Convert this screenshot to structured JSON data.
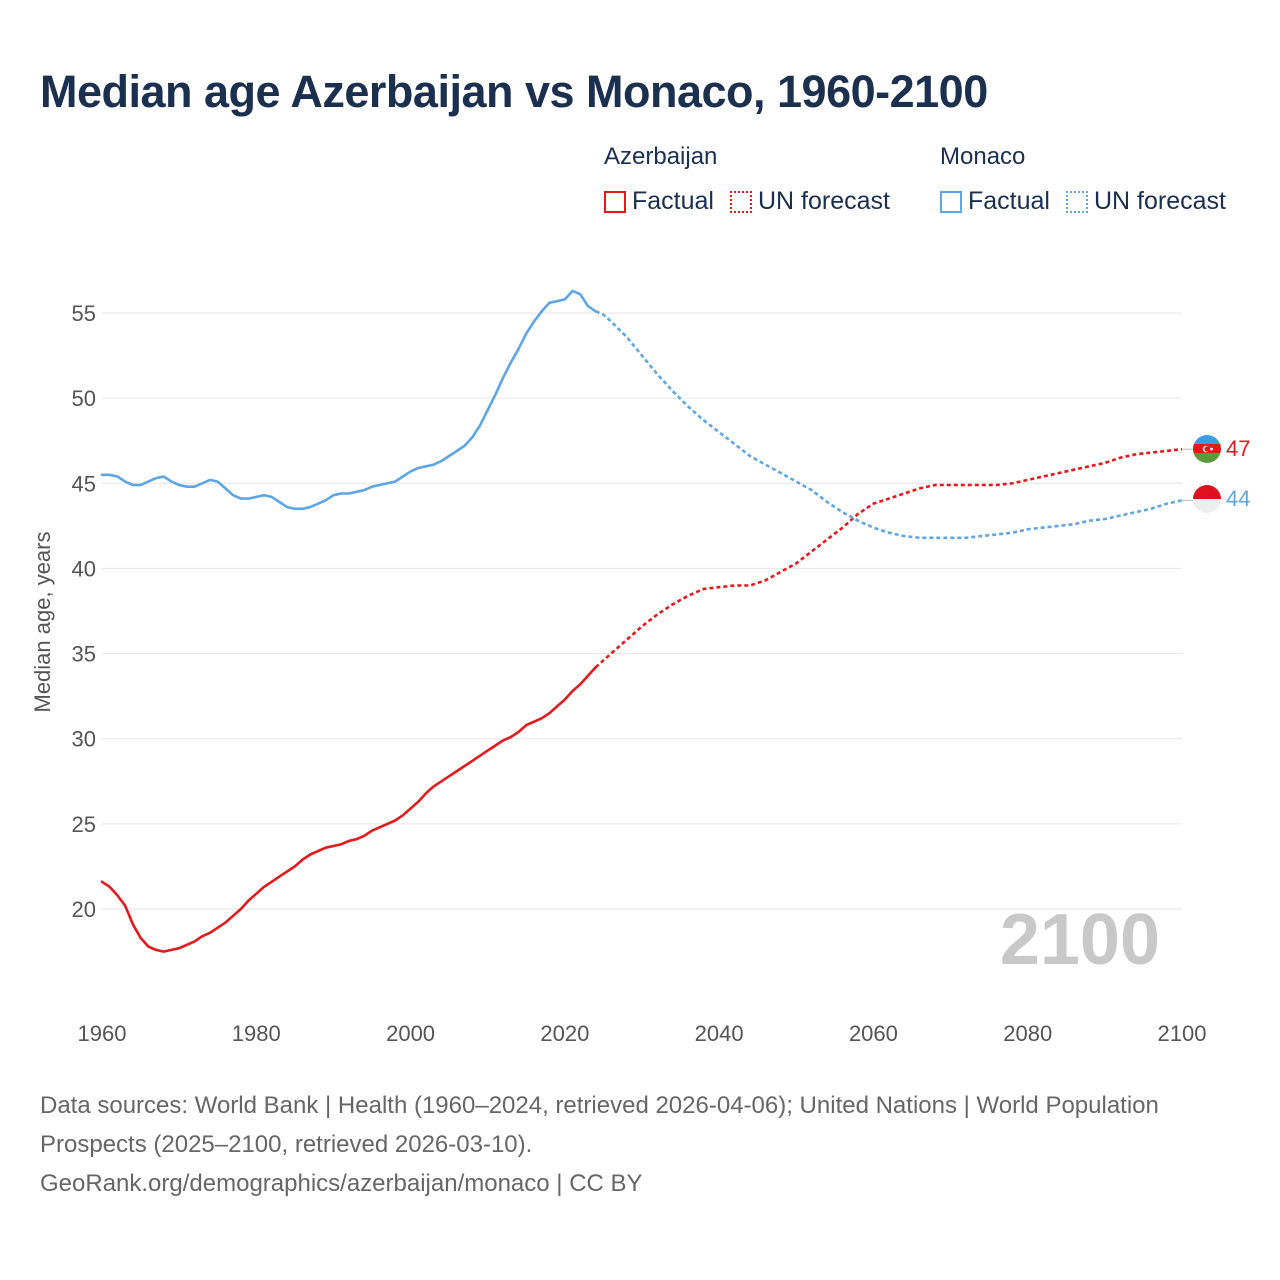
{
  "chart_data": {
    "type": "line",
    "title": "Median age Azerbaijan vs Monaco, 1960-2100",
    "ylabel": "Median age, years",
    "xlabel": "",
    "xlim": [
      1960,
      2100
    ],
    "ylim": [
      15,
      58
    ],
    "x_ticks": [
      1960,
      1980,
      2000,
      2020,
      2040,
      2060,
      2080,
      2100
    ],
    "y_ticks": [
      20,
      25,
      30,
      35,
      40,
      45,
      50,
      55
    ],
    "grid": true,
    "year_watermark": "2100",
    "forecast_start": 2024,
    "legend": {
      "groups": [
        {
          "name": "Azerbaijan",
          "factual_label": "Factual",
          "forecast_label": "UN forecast",
          "color": "#e31a1c"
        },
        {
          "name": "Monaco",
          "factual_label": "Factual",
          "forecast_label": "UN forecast",
          "color": "#5da6e3"
        }
      ]
    },
    "series": [
      {
        "name": "Azerbaijan",
        "color": "#e31a1c",
        "end_label": "47",
        "points": [
          [
            1960,
            21.6
          ],
          [
            1961,
            21.3
          ],
          [
            1962,
            20.8
          ],
          [
            1963,
            20.2
          ],
          [
            1964,
            19.1
          ],
          [
            1965,
            18.3
          ],
          [
            1966,
            17.8
          ],
          [
            1967,
            17.6
          ],
          [
            1968,
            17.5
          ],
          [
            1969,
            17.6
          ],
          [
            1970,
            17.7
          ],
          [
            1971,
            17.9
          ],
          [
            1972,
            18.1
          ],
          [
            1973,
            18.4
          ],
          [
            1974,
            18.6
          ],
          [
            1975,
            18.9
          ],
          [
            1976,
            19.2
          ],
          [
            1977,
            19.6
          ],
          [
            1978,
            20.0
          ],
          [
            1979,
            20.5
          ],
          [
            1980,
            20.9
          ],
          [
            1981,
            21.3
          ],
          [
            1982,
            21.6
          ],
          [
            1983,
            21.9
          ],
          [
            1984,
            22.2
          ],
          [
            1985,
            22.5
          ],
          [
            1986,
            22.9
          ],
          [
            1987,
            23.2
          ],
          [
            1988,
            23.4
          ],
          [
            1989,
            23.6
          ],
          [
            1990,
            23.7
          ],
          [
            1991,
            23.8
          ],
          [
            1992,
            24.0
          ],
          [
            1993,
            24.1
          ],
          [
            1994,
            24.3
          ],
          [
            1995,
            24.6
          ],
          [
            1996,
            24.8
          ],
          [
            1997,
            25.0
          ],
          [
            1998,
            25.2
          ],
          [
            1999,
            25.5
          ],
          [
            2000,
            25.9
          ],
          [
            2001,
            26.3
          ],
          [
            2002,
            26.8
          ],
          [
            2003,
            27.2
          ],
          [
            2004,
            27.5
          ],
          [
            2005,
            27.8
          ],
          [
            2006,
            28.1
          ],
          [
            2007,
            28.4
          ],
          [
            2008,
            28.7
          ],
          [
            2009,
            29.0
          ],
          [
            2010,
            29.3
          ],
          [
            2011,
            29.6
          ],
          [
            2012,
            29.9
          ],
          [
            2013,
            30.1
          ],
          [
            2014,
            30.4
          ],
          [
            2015,
            30.8
          ],
          [
            2016,
            31.0
          ],
          [
            2017,
            31.2
          ],
          [
            2018,
            31.5
          ],
          [
            2019,
            31.9
          ],
          [
            2020,
            32.3
          ],
          [
            2021,
            32.8
          ],
          [
            2022,
            33.2
          ],
          [
            2023,
            33.7
          ],
          [
            2024,
            34.2
          ],
          [
            2026,
            35.0
          ],
          [
            2028,
            35.8
          ],
          [
            2030,
            36.6
          ],
          [
            2032,
            37.3
          ],
          [
            2034,
            37.9
          ],
          [
            2036,
            38.4
          ],
          [
            2038,
            38.8
          ],
          [
            2040,
            38.9
          ],
          [
            2042,
            39.0
          ],
          [
            2044,
            39.0
          ],
          [
            2046,
            39.3
          ],
          [
            2048,
            39.8
          ],
          [
            2050,
            40.3
          ],
          [
            2052,
            41.0
          ],
          [
            2054,
            41.7
          ],
          [
            2056,
            42.4
          ],
          [
            2058,
            43.2
          ],
          [
            2060,
            43.8
          ],
          [
            2062,
            44.1
          ],
          [
            2064,
            44.4
          ],
          [
            2066,
            44.7
          ],
          [
            2068,
            44.9
          ],
          [
            2070,
            44.9
          ],
          [
            2072,
            44.9
          ],
          [
            2074,
            44.9
          ],
          [
            2076,
            44.9
          ],
          [
            2078,
            45.0
          ],
          [
            2080,
            45.2
          ],
          [
            2082,
            45.4
          ],
          [
            2084,
            45.6
          ],
          [
            2086,
            45.8
          ],
          [
            2088,
            46.0
          ],
          [
            2090,
            46.2
          ],
          [
            2092,
            46.5
          ],
          [
            2094,
            46.7
          ],
          [
            2096,
            46.8
          ],
          [
            2098,
            46.9
          ],
          [
            2100,
            47.0
          ]
        ]
      },
      {
        "name": "Monaco",
        "color": "#5da6e3",
        "end_label": "44",
        "points": [
          [
            1960,
            45.5
          ],
          [
            1961,
            45.5
          ],
          [
            1962,
            45.4
          ],
          [
            1963,
            45.1
          ],
          [
            1964,
            44.9
          ],
          [
            1965,
            44.9
          ],
          [
            1966,
            45.1
          ],
          [
            1967,
            45.3
          ],
          [
            1968,
            45.4
          ],
          [
            1969,
            45.1
          ],
          [
            1970,
            44.9
          ],
          [
            1971,
            44.8
          ],
          [
            1972,
            44.8
          ],
          [
            1973,
            45.0
          ],
          [
            1974,
            45.2
          ],
          [
            1975,
            45.1
          ],
          [
            1976,
            44.7
          ],
          [
            1977,
            44.3
          ],
          [
            1978,
            44.1
          ],
          [
            1979,
            44.1
          ],
          [
            1980,
            44.2
          ],
          [
            1981,
            44.3
          ],
          [
            1982,
            44.2
          ],
          [
            1983,
            43.9
          ],
          [
            1984,
            43.6
          ],
          [
            1985,
            43.5
          ],
          [
            1986,
            43.5
          ],
          [
            1987,
            43.6
          ],
          [
            1988,
            43.8
          ],
          [
            1989,
            44.0
          ],
          [
            1990,
            44.3
          ],
          [
            1991,
            44.4
          ],
          [
            1992,
            44.4
          ],
          [
            1993,
            44.5
          ],
          [
            1994,
            44.6
          ],
          [
            1995,
            44.8
          ],
          [
            1996,
            44.9
          ],
          [
            1997,
            45.0
          ],
          [
            1998,
            45.1
          ],
          [
            1999,
            45.4
          ],
          [
            2000,
            45.7
          ],
          [
            2001,
            45.9
          ],
          [
            2002,
            46.0
          ],
          [
            2003,
            46.1
          ],
          [
            2004,
            46.3
          ],
          [
            2005,
            46.6
          ],
          [
            2006,
            46.9
          ],
          [
            2007,
            47.2
          ],
          [
            2008,
            47.7
          ],
          [
            2009,
            48.4
          ],
          [
            2010,
            49.3
          ],
          [
            2011,
            50.2
          ],
          [
            2012,
            51.2
          ],
          [
            2013,
            52.1
          ],
          [
            2014,
            52.9
          ],
          [
            2015,
            53.8
          ],
          [
            2016,
            54.5
          ],
          [
            2017,
            55.1
          ],
          [
            2018,
            55.6
          ],
          [
            2019,
            55.7
          ],
          [
            2020,
            55.8
          ],
          [
            2021,
            56.3
          ],
          [
            2022,
            56.1
          ],
          [
            2023,
            55.4
          ],
          [
            2024,
            55.1
          ],
          [
            2025,
            54.9
          ],
          [
            2026,
            54.5
          ],
          [
            2028,
            53.6
          ],
          [
            2030,
            52.5
          ],
          [
            2032,
            51.4
          ],
          [
            2034,
            50.4
          ],
          [
            2036,
            49.5
          ],
          [
            2038,
            48.7
          ],
          [
            2040,
            48.0
          ],
          [
            2042,
            47.3
          ],
          [
            2044,
            46.6
          ],
          [
            2046,
            46.1
          ],
          [
            2048,
            45.6
          ],
          [
            2050,
            45.1
          ],
          [
            2052,
            44.6
          ],
          [
            2054,
            43.9
          ],
          [
            2056,
            43.3
          ],
          [
            2058,
            42.8
          ],
          [
            2060,
            42.4
          ],
          [
            2062,
            42.1
          ],
          [
            2064,
            41.9
          ],
          [
            2066,
            41.8
          ],
          [
            2068,
            41.8
          ],
          [
            2070,
            41.8
          ],
          [
            2072,
            41.8
          ],
          [
            2074,
            41.9
          ],
          [
            2076,
            42.0
          ],
          [
            2078,
            42.1
          ],
          [
            2080,
            42.3
          ],
          [
            2082,
            42.4
          ],
          [
            2084,
            42.5
          ],
          [
            2086,
            42.6
          ],
          [
            2088,
            42.8
          ],
          [
            2090,
            42.9
          ],
          [
            2092,
            43.1
          ],
          [
            2094,
            43.3
          ],
          [
            2096,
            43.5
          ],
          [
            2098,
            43.8
          ],
          [
            2100,
            44.0
          ]
        ]
      }
    ]
  },
  "footer": {
    "line1": "Data sources: World Bank | Health (1960–2024, retrieved 2026-04-06); United Nations | World Population Prospects (2025–2100, retrieved 2026-03-10).",
    "line2": "GeoRank.org/demographics/azerbaijan/monaco | CC BY"
  }
}
